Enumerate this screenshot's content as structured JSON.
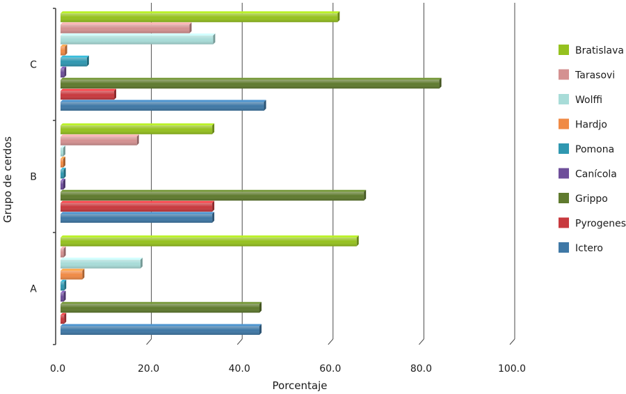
{
  "chart_data": {
    "type": "bar",
    "orientation": "horizontal",
    "xlabel": "Porcentaje",
    "ylabel": "Grupo de cerdos",
    "xlim": [
      0,
      100
    ],
    "xticks": [
      "0.0",
      "20.0",
      "40.0",
      "60.0",
      "80.0",
      "100.0"
    ],
    "categories": [
      "A",
      "B",
      "C"
    ],
    "grid": "vertical",
    "legend_position": "right",
    "series": [
      {
        "name": "Ictero",
        "color": "#3f78a6",
        "values": [
          43.8,
          33.4,
          44.8
        ]
      },
      {
        "name": "Pyrogenes",
        "color": "#c8393e",
        "values": [
          0.8,
          33.4,
          11.8
        ]
      },
      {
        "name": "Grippo",
        "color": "#5f7a2e",
        "values": [
          43.8,
          66.8,
          83.4
        ]
      },
      {
        "name": "Canícola",
        "color": "#6e4e9a",
        "values": [
          0.7,
          0.6,
          0.8
        ]
      },
      {
        "name": "Pomona",
        "color": "#2f97b0",
        "values": [
          0.8,
          0.7,
          5.8
        ]
      },
      {
        "name": "Hardjo",
        "color": "#f08a45",
        "values": [
          4.8,
          0.5,
          1.0
        ]
      },
      {
        "name": "Wolffi",
        "color": "#a8dcd8",
        "values": [
          17.6,
          0.6,
          33.6
        ]
      },
      {
        "name": "Tarasovi",
        "color": "#d49191",
        "values": [
          0.7,
          16.8,
          28.4
        ]
      },
      {
        "name": "Bratislava",
        "color": "#95c11f",
        "values": [
          65.2,
          33.4,
          61.0
        ]
      }
    ],
    "legend_order": [
      "Bratislava",
      "Tarasovi",
      "Wolffi",
      "Hardjo",
      "Pomona",
      "Canícola",
      "Grippo",
      "Pyrogenes",
      "Ictero"
    ]
  }
}
